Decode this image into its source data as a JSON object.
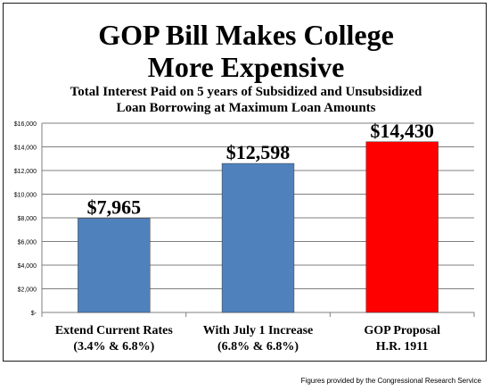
{
  "chart_data": {
    "type": "bar",
    "title_lines": [
      "GOP Bill Makes College",
      "More Expensive"
    ],
    "subtitle_lines": [
      "Total Interest Paid on 5 years of Subsidized and Unsubsidized",
      "Loan Borrowing at Maximum Loan Amounts"
    ],
    "categories": [
      {
        "line1": "Extend Current Rates",
        "line2": "(3.4% & 6.8%)"
      },
      {
        "line1": "With July 1 Increase",
        "line2": "(6.8% & 6.8%)"
      },
      {
        "line1": "GOP Proposal",
        "line2": "H.R. 1911"
      }
    ],
    "values": [
      7965,
      12598,
      14430
    ],
    "data_labels": [
      "$7,965",
      "$12,598",
      "$14,430"
    ],
    "colors": [
      "#4F81BD",
      "#4F81BD",
      "#FF0000"
    ],
    "ylim": [
      0,
      16000
    ],
    "yticks": [
      {
        "value": 0,
        "label": "$-"
      },
      {
        "value": 2000,
        "label": "$2,000"
      },
      {
        "value": 4000,
        "label": "$4,000"
      },
      {
        "value": 6000,
        "label": "$6,000"
      },
      {
        "value": 8000,
        "label": "$8,000"
      },
      {
        "value": 10000,
        "label": "$10,000"
      },
      {
        "value": 12000,
        "label": "$12,000"
      },
      {
        "value": 14000,
        "label": "$14,000"
      },
      {
        "value": 16000,
        "label": "$16,000"
      }
    ],
    "grid": true
  },
  "footnote": "Figures provided by the Congressional Research Service"
}
